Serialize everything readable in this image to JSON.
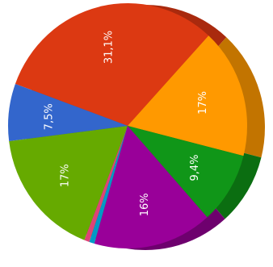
{
  "chart_data": {
    "type": "pie",
    "title": "",
    "legend": "none",
    "slices": [
      {
        "label": "31,1%",
        "value": 31.1,
        "color": "#dc3912",
        "side": "#a92a0e"
      },
      {
        "label": "17%",
        "value": 17.0,
        "color": "#ff9900",
        "side": "#c27400"
      },
      {
        "label": "9,4%",
        "value": 9.4,
        "color": "#109618",
        "side": "#0b6e11"
      },
      {
        "label": "16%",
        "value": 16.0,
        "color": "#990099",
        "side": "#6e006e"
      },
      {
        "label": "",
        "value": 0.7,
        "color": "#0099c6",
        "side": "#007395"
      },
      {
        "label": "",
        "value": 0.7,
        "color": "#dd4477",
        "side": "#a83359"
      },
      {
        "label": "17%",
        "value": 17.0,
        "color": "#66aa00",
        "side": "#4c8000"
      },
      {
        "label": "7,5%",
        "value": 7.5,
        "color": "#3366cc",
        "side": "#264d99"
      }
    ]
  }
}
